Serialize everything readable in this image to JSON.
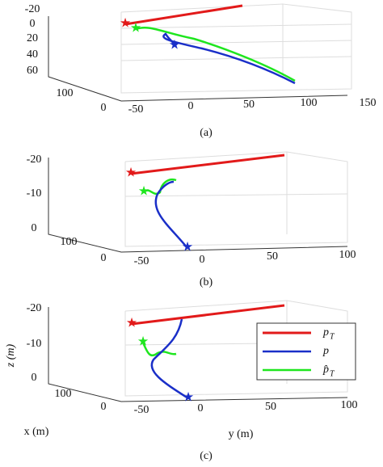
{
  "panels": [
    {
      "caption": "(a)",
      "zticks": [
        "-20",
        "0",
        "20",
        "40",
        "60"
      ],
      "xticks": [
        "100",
        "0"
      ],
      "yticks": [
        "-50",
        "0",
        "50",
        "100",
        "150"
      ]
    },
    {
      "caption": "(b)",
      "zticks": [
        "-20",
        "-10",
        "0"
      ],
      "xticks": [
        "100",
        "0"
      ],
      "yticks": [
        "-50",
        "0",
        "50",
        "100"
      ]
    },
    {
      "caption": "(c)",
      "zticks": [
        "-20",
        "-10",
        "0"
      ],
      "xticks": [
        "100",
        "0"
      ],
      "yticks": [
        "-50",
        "0",
        "50",
        "100"
      ],
      "zlabel": "z (m)",
      "xlabel": "x (m)",
      "ylabel": "y (m)"
    }
  ],
  "legend": [
    {
      "symbol": "p",
      "sub": "T"
    },
    {
      "symbol": "p",
      "sub": ""
    },
    {
      "symbol": "p̂",
      "sub": "T"
    }
  ]
}
